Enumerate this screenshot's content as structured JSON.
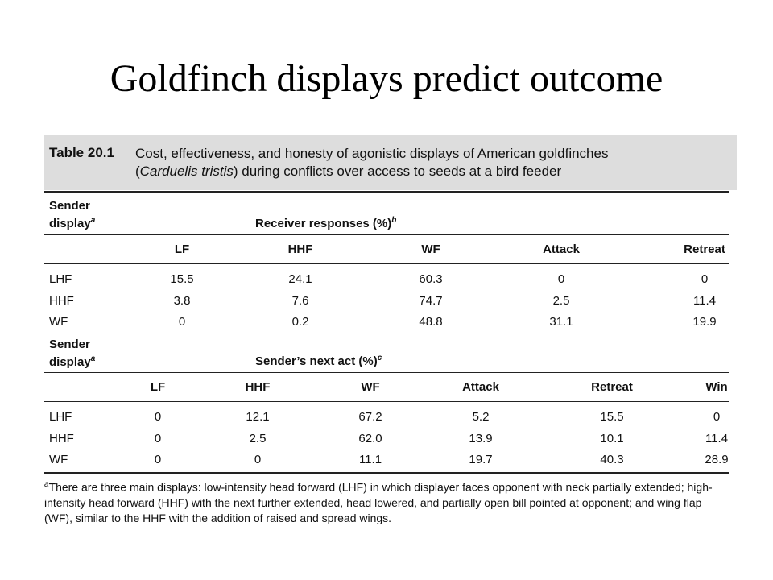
{
  "slide": {
    "title": "Goldfinch displays predict outcome"
  },
  "table": {
    "number": "Table 20.1",
    "caption_line1": "Cost, effectiveness, and honesty of agonistic displays of American goldfinches",
    "caption_species": "Carduelis tristis",
    "caption_line2_rest": ") during conflicts over access to seeds at a bird feeder",
    "section1": {
      "row_label_line1": "Sender",
      "row_label_line2": "display",
      "row_label_sup": "a",
      "group_label": "Receiver responses (%)",
      "group_sup": "b",
      "columns": [
        "LF",
        "HHF",
        "WF",
        "Attack",
        "Retreat"
      ],
      "rows": [
        {
          "label": "LHF",
          "values": [
            "15.5",
            "24.1",
            "60.3",
            "0",
            "0"
          ]
        },
        {
          "label": "HHF",
          "values": [
            "3.8",
            "7.6",
            "74.7",
            "2.5",
            "11.4"
          ]
        },
        {
          "label": "WF",
          "values": [
            "0",
            "0.2",
            "48.8",
            "31.1",
            "19.9"
          ]
        }
      ]
    },
    "section2": {
      "row_label_line1": "Sender",
      "row_label_line2": "display",
      "row_label_sup": "a",
      "group_label": "Sender’s next act (%)",
      "group_sup": "c",
      "columns": [
        "LF",
        "HHF",
        "WF",
        "Attack",
        "Retreat",
        "Win"
      ],
      "rows": [
        {
          "label": "LHF",
          "values": [
            "0",
            "12.1",
            "67.2",
            "5.2",
            "15.5",
            "0"
          ]
        },
        {
          "label": "HHF",
          "values": [
            "0",
            "2.5",
            "62.0",
            "13.9",
            "10.1",
            "11.4"
          ]
        },
        {
          "label": "WF",
          "values": [
            "0",
            "0",
            "11.1",
            "19.7",
            "40.3",
            "28.9"
          ]
        }
      ]
    },
    "footnote_mark": "a",
    "footnote": "There are three main displays: low-intensity head forward (LHF) in which displayer faces opponent with neck partially extended; high-intensity head forward (HHF) with the next further extended, head lowered, and partially open bill pointed at opponent; and wing flap (WF), similar to the HHF with the addition of raised and spread wings."
  }
}
